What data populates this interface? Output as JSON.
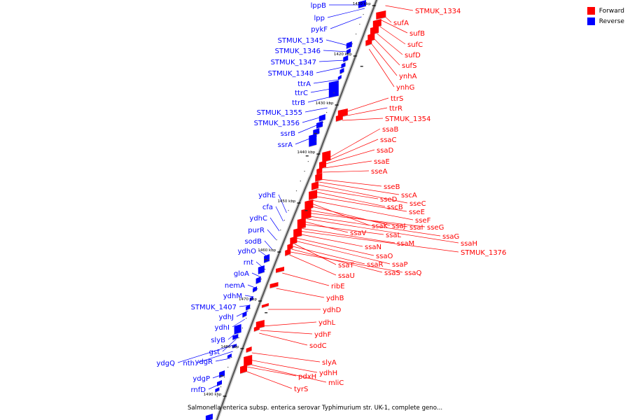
{
  "caption": "Salmonella enterica subsp. enterica serovar Typhimurium str. UK-1, complete geno...",
  "legend": [
    {
      "label": "Forward",
      "color": "#ff0000"
    },
    {
      "label": "Reverse",
      "color": "#0000ff"
    }
  ],
  "colors": {
    "forward": "#ff0000",
    "reverse": "#0000ff",
    "backbone": "#999999",
    "tick": "#000000"
  },
  "ticks": [
    "1410 kbp",
    "1420 kbp",
    "1430 kbp",
    "1440 kbp",
    "1450 kbp",
    "1460 kbp",
    "1470 kbp",
    "1480 kbp",
    "1490 kbp"
  ],
  "reverse_genes": [
    "lppB",
    "lpp",
    "pykF",
    "STMUK_1345",
    "STMUK_1346",
    "STMUK_1347",
    "STMUK_1348",
    "ttrA",
    "ttrC",
    "ttrB",
    "STMUK_1355",
    "STMUK_1356",
    "ssrB",
    "ssrA",
    "ydhE",
    "cfa",
    "ydhC",
    "purR",
    "sodB",
    "ydhO",
    "rnt",
    "gloA",
    "nemA",
    "ydhM",
    "STMUK_1407",
    "ydhJ",
    "ydhI",
    "slyB",
    "gst",
    "ydgQ",
    "nth",
    "ydgR",
    "ydgP",
    "rnfD"
  ],
  "forward_genes": [
    "STMUK_1334",
    "sufA",
    "sufB",
    "sufC",
    "sufD",
    "sufS",
    "ynhA",
    "ynhG",
    "ttrS",
    "ttrR",
    "STMUK_1354",
    "ssaB",
    "ssaC",
    "ssaD",
    "ssaE",
    "sseA",
    "sseB",
    "sscA",
    "sseC",
    "sseD",
    "sscB",
    "sseE",
    "sseF",
    "ssaK",
    "ssaJ",
    "ssaI",
    "sseG",
    "ssaG",
    "ssaH",
    "ssaV",
    "ssaL",
    "ssaM",
    "STMUK_1376",
    "ssaN",
    "ssaO",
    "ssaP",
    "ssaT",
    "ssaR",
    "ssaS",
    "ssaQ",
    "ssaU",
    "ribE",
    "ydhB",
    "ydhD",
    "ydhL",
    "ydhF",
    "sodC",
    "slyA",
    "ydhH",
    "mliC",
    "pdxH",
    "tyrS"
  ]
}
